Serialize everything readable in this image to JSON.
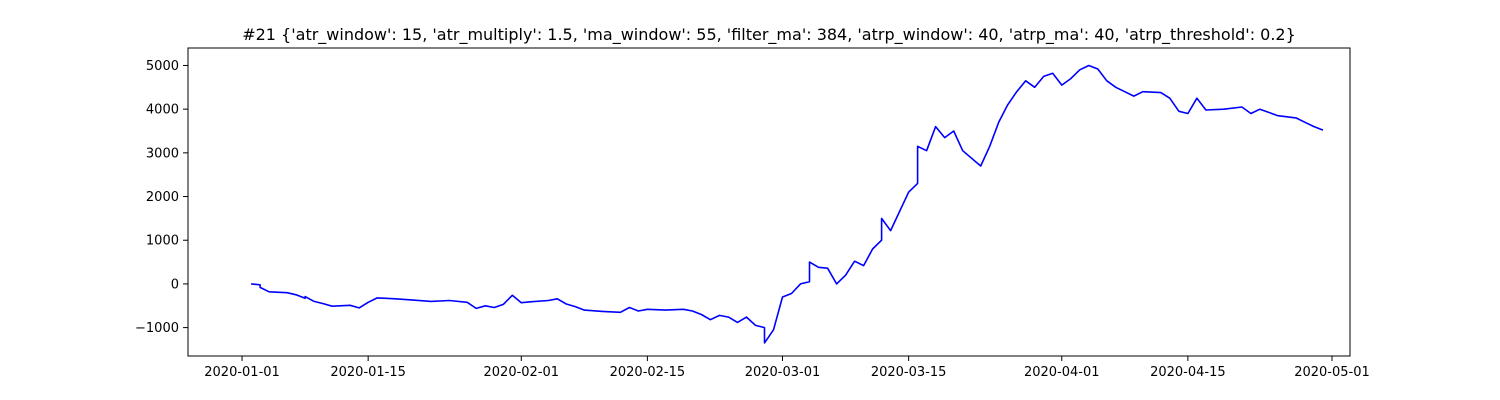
{
  "chart_data": {
    "type": "line",
    "title": "#21 {'atr_window': 15, 'atr_multiply': 1.5, 'ma_window': 55, 'filter_ma': 384, 'atrp_window': 40, 'atrp_ma': 40, 'atrp_threshold': 0.2}",
    "xlabel": "",
    "ylabel": "",
    "x_axis_type": "date",
    "xlim": [
      "2019-12-26",
      "2020-05-03"
    ],
    "ylim": [
      -1650,
      5400
    ],
    "grid": false,
    "legend": false,
    "x_ticks": [
      "2020-01-01",
      "2020-01-15",
      "2020-02-01",
      "2020-02-15",
      "2020-03-01",
      "2020-03-15",
      "2020-04-01",
      "2020-04-15",
      "2020-05-01"
    ],
    "y_ticks": [
      -1000,
      0,
      1000,
      2000,
      3000,
      4000,
      5000
    ],
    "y_tick_labels": [
      "−1000",
      "0",
      "1000",
      "2000",
      "3000",
      "4000",
      "5000"
    ],
    "series": [
      {
        "name": "",
        "color": "#0000ff",
        "points": [
          [
            "2020-01-02",
            0
          ],
          [
            "2020-01-03",
            -20
          ],
          [
            "2020-01-03",
            -80
          ],
          [
            "2020-01-04",
            -180
          ],
          [
            "2020-01-06",
            -200
          ],
          [
            "2020-01-07",
            -250
          ],
          [
            "2020-01-08",
            -330
          ],
          [
            "2020-01-08",
            -290
          ],
          [
            "2020-01-09",
            -400
          ],
          [
            "2020-01-10",
            -450
          ],
          [
            "2020-01-11",
            -510
          ],
          [
            "2020-01-13",
            -490
          ],
          [
            "2020-01-14",
            -550
          ],
          [
            "2020-01-15",
            -420
          ],
          [
            "2020-01-16",
            -320
          ],
          [
            "2020-01-18",
            -340
          ],
          [
            "2020-01-20",
            -370
          ],
          [
            "2020-01-22",
            -400
          ],
          [
            "2020-01-24",
            -380
          ],
          [
            "2020-01-26",
            -420
          ],
          [
            "2020-01-27",
            -560
          ],
          [
            "2020-01-28",
            -500
          ],
          [
            "2020-01-29",
            -540
          ],
          [
            "2020-01-30",
            -470
          ],
          [
            "2020-01-31",
            -260
          ],
          [
            "2020-02-01",
            -430
          ],
          [
            "2020-02-02",
            -410
          ],
          [
            "2020-02-04",
            -380
          ],
          [
            "2020-02-05",
            -340
          ],
          [
            "2020-02-06",
            -460
          ],
          [
            "2020-02-07",
            -520
          ],
          [
            "2020-02-08",
            -600
          ],
          [
            "2020-02-10",
            -630
          ],
          [
            "2020-02-12",
            -650
          ],
          [
            "2020-02-13",
            -540
          ],
          [
            "2020-02-14",
            -620
          ],
          [
            "2020-02-15",
            -580
          ],
          [
            "2020-02-17",
            -600
          ],
          [
            "2020-02-19",
            -580
          ],
          [
            "2020-02-20",
            -620
          ],
          [
            "2020-02-21",
            -700
          ],
          [
            "2020-02-22",
            -820
          ],
          [
            "2020-02-23",
            -720
          ],
          [
            "2020-02-24",
            -760
          ],
          [
            "2020-02-25",
            -880
          ],
          [
            "2020-02-26",
            -760
          ],
          [
            "2020-02-27",
            -950
          ],
          [
            "2020-02-28",
            -1000
          ],
          [
            "2020-02-28",
            -1350
          ],
          [
            "2020-02-29",
            -1050
          ],
          [
            "2020-03-01",
            -300
          ],
          [
            "2020-03-02",
            -220
          ],
          [
            "2020-03-03",
            0
          ],
          [
            "2020-03-04",
            50
          ],
          [
            "2020-03-04",
            500
          ],
          [
            "2020-03-05",
            380
          ],
          [
            "2020-03-06",
            360
          ],
          [
            "2020-03-07",
            0
          ],
          [
            "2020-03-08",
            200
          ],
          [
            "2020-03-09",
            520
          ],
          [
            "2020-03-10",
            420
          ],
          [
            "2020-03-11",
            800
          ],
          [
            "2020-03-12",
            1000
          ],
          [
            "2020-03-12",
            1500
          ],
          [
            "2020-03-13",
            1220
          ],
          [
            "2020-03-15",
            2100
          ],
          [
            "2020-03-16",
            2300
          ],
          [
            "2020-03-16",
            3150
          ],
          [
            "2020-03-17",
            3050
          ],
          [
            "2020-03-18",
            3600
          ],
          [
            "2020-03-19",
            3350
          ],
          [
            "2020-03-20",
            3500
          ],
          [
            "2020-03-21",
            3050
          ],
          [
            "2020-03-23",
            2700
          ],
          [
            "2020-03-24",
            3150
          ],
          [
            "2020-03-25",
            3700
          ],
          [
            "2020-03-26",
            4100
          ],
          [
            "2020-03-27",
            4400
          ],
          [
            "2020-03-28",
            4650
          ],
          [
            "2020-03-29",
            4500
          ],
          [
            "2020-03-30",
            4750
          ],
          [
            "2020-03-31",
            4820
          ],
          [
            "2020-04-01",
            4550
          ],
          [
            "2020-04-02",
            4700
          ],
          [
            "2020-04-03",
            4900
          ],
          [
            "2020-04-04",
            5000
          ],
          [
            "2020-04-05",
            4920
          ],
          [
            "2020-04-06",
            4650
          ],
          [
            "2020-04-07",
            4500
          ],
          [
            "2020-04-08",
            4400
          ],
          [
            "2020-04-09",
            4300
          ],
          [
            "2020-04-10",
            4400
          ],
          [
            "2020-04-12",
            4380
          ],
          [
            "2020-04-13",
            4250
          ],
          [
            "2020-04-14",
            3950
          ],
          [
            "2020-04-15",
            3900
          ],
          [
            "2020-04-16",
            4250
          ],
          [
            "2020-04-17",
            3980
          ],
          [
            "2020-04-19",
            4000
          ],
          [
            "2020-04-21",
            4050
          ],
          [
            "2020-04-22",
            3900
          ],
          [
            "2020-04-23",
            4000
          ],
          [
            "2020-04-25",
            3850
          ],
          [
            "2020-04-27",
            3800
          ],
          [
            "2020-04-28",
            3700
          ],
          [
            "2020-04-29",
            3600
          ],
          [
            "2020-04-30",
            3520
          ]
        ]
      }
    ]
  }
}
